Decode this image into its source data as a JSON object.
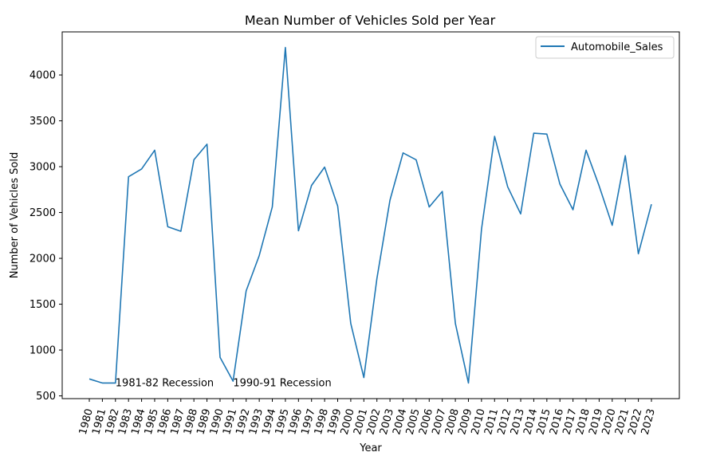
{
  "chart_data": {
    "type": "line",
    "title": "Mean Number of Vehicles Sold per Year",
    "xlabel": "Year",
    "ylabel": "Number of Vehicles Sold",
    "categories": [
      "1980",
      "1981",
      "1982",
      "1983",
      "1984",
      "1985",
      "1986",
      "1987",
      "1988",
      "1989",
      "1990",
      "1991",
      "1992",
      "1993",
      "1994",
      "1995",
      "1996",
      "1997",
      "1998",
      "1999",
      "2000",
      "2001",
      "2002",
      "2003",
      "2004",
      "2005",
      "2006",
      "2007",
      "2008",
      "2009",
      "2010",
      "2011",
      "2012",
      "2013",
      "2014",
      "2015",
      "2016",
      "2017",
      "2018",
      "2019",
      "2020",
      "2021",
      "2022",
      "2023"
    ],
    "series": [
      {
        "name": "Automobile_Sales",
        "color": "#1f77b4",
        "values": [
          685,
          640,
          640,
          2890,
          2975,
          3180,
          2345,
          2295,
          3075,
          3245,
          920,
          660,
          1645,
          2030,
          2560,
          4300,
          2300,
          2795,
          2995,
          2570,
          1290,
          700,
          1780,
          2635,
          3150,
          3075,
          2560,
          2730,
          1290,
          640,
          2320,
          3330,
          2780,
          2485,
          3365,
          3355,
          2810,
          2530,
          3180,
          2790,
          2360,
          3120,
          2050,
          2590
        ]
      }
    ],
    "yticks": [
      500,
      1000,
      1500,
      2000,
      2500,
      3000,
      3500,
      4000
    ],
    "ylim": [
      470,
      4470
    ],
    "grid": false,
    "legend_position": "top-right",
    "annotations": [
      {
        "text": "1981-82 Recession",
        "x": "1982",
        "y": 650
      },
      {
        "text": "1990-91 Recession",
        "x": "1991",
        "y": 650
      }
    ]
  }
}
